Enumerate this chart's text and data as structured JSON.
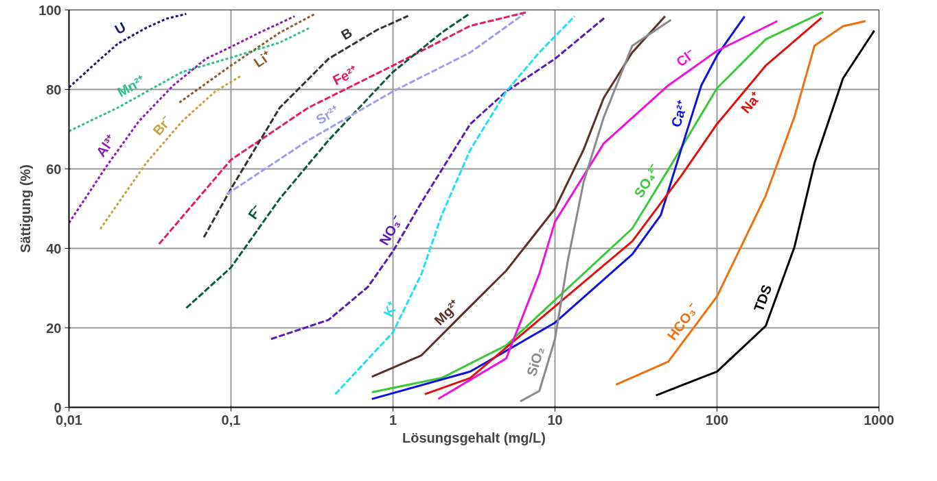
{
  "chart_data": {
    "type": "line",
    "xlabel": "Lösungsgehalt (mg/L)",
    "ylabel": "Sättigung (%)",
    "log": "x",
    "grid": true,
    "marker": "none",
    "xlim": [
      0.01,
      1000
    ],
    "ylim": [
      0,
      100
    ],
    "xticks": [
      {
        "value": 0.01,
        "label": "0,01"
      },
      {
        "value": 0.1,
        "label": "0,1"
      },
      1,
      10,
      100,
      1000
    ],
    "yticks": [
      0,
      20,
      40,
      60,
      80,
      100
    ],
    "series": [
      {
        "name": "U",
        "color": "#1a1a6e",
        "line_style": "dotted",
        "x": [
          0.01,
          0.015,
          0.02,
          0.03,
          0.04,
          0.053
        ],
        "values": [
          80.5,
          87,
          91.5,
          95.5,
          97.8,
          99
        ]
      },
      {
        "name": "Mn²⁺",
        "color": "#2fbf8f",
        "line_style": "dotted",
        "x": [
          0.01,
          0.02,
          0.05,
          0.1,
          0.2,
          0.31
        ],
        "values": [
          69.5,
          75.4,
          84.4,
          88,
          91.8,
          95.6
        ]
      },
      {
        "name": "Al³⁺",
        "color": "#8a1ab8",
        "line_style": "dotted",
        "x": [
          0.01,
          0.017,
          0.027,
          0.044,
          0.07,
          0.1,
          0.15,
          0.247
        ],
        "values": [
          46.4,
          60.6,
          72,
          81,
          87.7,
          90.7,
          94.3,
          98.4
        ]
      },
      {
        "name": "Li⁺",
        "color": "#8b5a2b",
        "line_style": "dotted",
        "x": [
          0.048,
          0.1,
          0.2,
          0.33
        ],
        "values": [
          76.7,
          86,
          94.3,
          99
        ]
      },
      {
        "name": "Br⁻",
        "color": "#c8a040",
        "line_style": "dotted",
        "x": [
          0.0156,
          0.03,
          0.05,
          0.08,
          0.115
        ],
        "values": [
          44.9,
          61.5,
          72,
          79.5,
          83.4
        ]
      },
      {
        "name": "Fe²⁺",
        "color": "#e8186a",
        "line_style": "dashed",
        "x": [
          0.036,
          0.1,
          0.3,
          1,
          3,
          6.8
        ],
        "values": [
          41.1,
          62.3,
          75.4,
          86,
          96,
          99.5
        ]
      },
      {
        "name": "B",
        "color": "#333333",
        "line_style": "dashed",
        "x": [
          0.068,
          0.1,
          0.2,
          0.4,
          0.8,
          1.24
        ],
        "values": [
          42.8,
          55,
          75.4,
          87.7,
          95,
          98.5
        ]
      },
      {
        "name": "F⁻",
        "color": "#0a5a3a",
        "line_style": "dashed",
        "x": [
          0.053,
          0.1,
          0.2,
          0.4,
          1,
          2,
          2.95
        ],
        "values": [
          25,
          35.2,
          52.5,
          67.2,
          84.4,
          94.3,
          99
        ]
      },
      {
        "name": "Sr²⁺",
        "color": "#9f9fe8",
        "line_style": "dashed",
        "x": [
          0.094,
          0.3,
          1,
          3,
          6.4
        ],
        "values": [
          53.6,
          67.2,
          79.5,
          89.3,
          98.9
        ]
      },
      {
        "name": "NO₃⁻",
        "color": "#5a1ab8",
        "line_style": "dashed",
        "x": [
          0.177,
          0.4,
          0.7,
          1,
          1.5,
          3,
          5,
          10,
          20.2
        ],
        "values": [
          17.2,
          22,
          30.3,
          39.3,
          51.6,
          71.3,
          79.5,
          87.7,
          98
        ]
      },
      {
        "name": "K⁺",
        "color": "#1ee0f0",
        "line_style": "dashed",
        "x": [
          0.44,
          1,
          1.5,
          2,
          3,
          5,
          8,
          13.2
        ],
        "values": [
          3.3,
          18.9,
          33.6,
          48.4,
          64.8,
          79.5,
          89.3,
          98.4
        ]
      },
      {
        "name": "Mg²⁺",
        "color": "#5a3028",
        "line_style": "solid",
        "x": [
          0.74,
          1.5,
          3,
          5,
          10,
          15,
          20,
          30,
          47.8
        ],
        "values": [
          7.7,
          13.1,
          25.4,
          34.4,
          50,
          64.8,
          77.9,
          89.3,
          98.4
        ]
      },
      {
        "name": "SO₄²⁻",
        "color": "#3ac83a",
        "line_style": "solid",
        "x": [
          0.74,
          2,
          5,
          10,
          30,
          50,
          100,
          200,
          454
        ],
        "values": [
          3.8,
          7.4,
          15.6,
          27,
          45,
          59.8,
          80.3,
          92.6,
          99.5
        ]
      },
      {
        "name": "Ca²⁺",
        "color": "#1010e0",
        "line_style": "solid",
        "x": [
          0.74,
          3,
          10,
          30,
          45,
          60,
          80,
          100,
          148
        ],
        "values": [
          2.1,
          9,
          21.3,
          38.5,
          48.4,
          64.8,
          81,
          88.5,
          98.4
        ]
      },
      {
        "name": "Na⁺",
        "color": "#e01010",
        "line_style": "solid",
        "x": [
          1.57,
          3,
          10,
          30,
          60,
          100,
          200,
          441
        ],
        "values": [
          3.3,
          7.4,
          25.4,
          41.8,
          58.2,
          71.3,
          86,
          98
        ]
      },
      {
        "name": "Cl⁻",
        "color": "#f010e0",
        "line_style": "solid",
        "x": [
          1.9,
          5,
          8,
          10,
          20,
          50,
          100,
          236
        ],
        "values": [
          2.1,
          12.3,
          33.6,
          46.7,
          66.4,
          81,
          89.7,
          97.2
        ]
      },
      {
        "name": "SiO₂",
        "color": "#8a8a8a",
        "line_style": "solid",
        "x": [
          6.1,
          8,
          10,
          12,
          15,
          20,
          30,
          52
        ],
        "values": [
          1.5,
          4.1,
          17.2,
          36.9,
          56.6,
          73,
          91,
          97.5
        ]
      },
      {
        "name": "HCO₃⁻",
        "color": "#f07010",
        "line_style": "solid",
        "x": [
          23.8,
          50,
          100,
          200,
          300,
          400,
          600,
          826
        ],
        "values": [
          5.7,
          11.5,
          27.9,
          53.3,
          73,
          91,
          95.9,
          97.2
        ]
      },
      {
        "name": "TDS",
        "color": "#000000",
        "line_style": "solid",
        "x": [
          42,
          100,
          200,
          300,
          400,
          600,
          935
        ],
        "values": [
          3,
          9,
          20.5,
          40.2,
          61.5,
          82.8,
          94.8
        ]
      }
    ]
  }
}
